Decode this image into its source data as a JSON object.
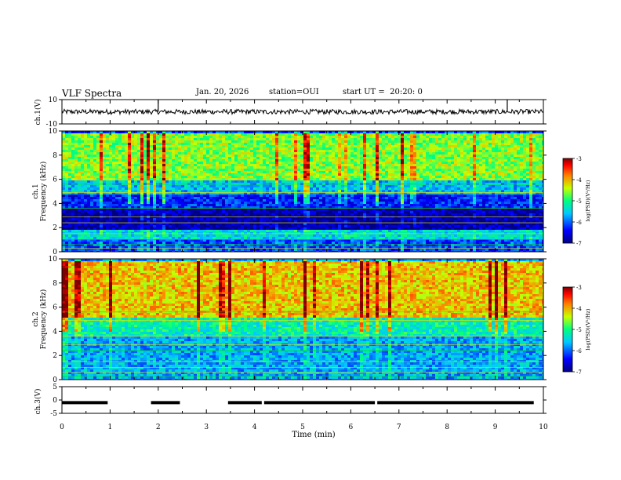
{
  "header": {
    "title": "VLF Spectra",
    "date": "Jan. 20, 2026",
    "station": "station=OUI",
    "start": "start UT =  20:20: 0"
  },
  "chart_data": [
    {
      "type": "line",
      "name": "ch1-waveform",
      "ylabel": "ch.1(V)",
      "ylim": [
        -10,
        10
      ],
      "yticks": [
        "10",
        "-10"
      ],
      "baseline": 0,
      "spikes": [
        {
          "x": 2.0,
          "y": 10
        },
        {
          "x": 9.25,
          "y": 10
        }
      ]
    },
    {
      "type": "heatmap",
      "name": "ch1-spectrogram",
      "ylabel": "ch.1\nFrequency (kHz)",
      "ylim": [
        0,
        10
      ],
      "yticks": [
        "0",
        "2",
        "4",
        "6",
        "8",
        "10"
      ],
      "colorbar": {
        "label": "log(PSD)(V²/Hz)",
        "ticks": [
          "-3",
          "-4",
          "-5",
          "-6",
          "-7"
        ],
        "range": [
          -7,
          -3
        ]
      },
      "bands": [
        {
          "from": 6.0,
          "to": 10.0,
          "level": -4.6
        },
        {
          "from": 4.8,
          "to": 6.0,
          "level": -5.6
        },
        {
          "from": 3.6,
          "to": 4.8,
          "level": -6.3
        },
        {
          "from": 2.0,
          "to": 3.6,
          "level": -6.8
        },
        {
          "from": 1.2,
          "to": 2.0,
          "level": -5.4
        },
        {
          "from": 0.0,
          "to": 1.2,
          "level": -6.1
        }
      ]
    },
    {
      "type": "heatmap",
      "name": "ch2-spectrogram",
      "ylabel": "ch.2\nFrequency (kHz)",
      "ylim": [
        0,
        10
      ],
      "yticks": [
        "0",
        "2",
        "4",
        "6",
        "8",
        "10"
      ],
      "colorbar": {
        "label": "log(PSD)(V²/Hz)",
        "ticks": [
          "-3",
          "-4",
          "-5",
          "-6",
          "-7"
        ],
        "range": [
          -7,
          -3
        ]
      },
      "bands": [
        {
          "from": 5.2,
          "to": 10.0,
          "level": -4.1
        },
        {
          "from": 3.6,
          "to": 5.2,
          "level": -5.2
        },
        {
          "from": 0.0,
          "to": 3.6,
          "level": -5.7
        }
      ]
    },
    {
      "type": "line",
      "name": "ch3-signal",
      "ylabel": "ch.3(V)",
      "ylim": [
        -5,
        5
      ],
      "yticks": [
        "5",
        "0",
        "-5"
      ],
      "level": -1,
      "segments": [
        [
          0.0,
          0.95
        ],
        [
          1.85,
          2.45
        ],
        [
          3.45,
          4.15
        ],
        [
          4.2,
          6.5
        ],
        [
          6.55,
          9.8
        ]
      ]
    }
  ],
  "xaxis": {
    "label": "Time (min)",
    "xlim": [
      0,
      10
    ],
    "ticks": [
      "0",
      "1",
      "2",
      "3",
      "4",
      "5",
      "6",
      "7",
      "8",
      "9",
      "10"
    ]
  }
}
